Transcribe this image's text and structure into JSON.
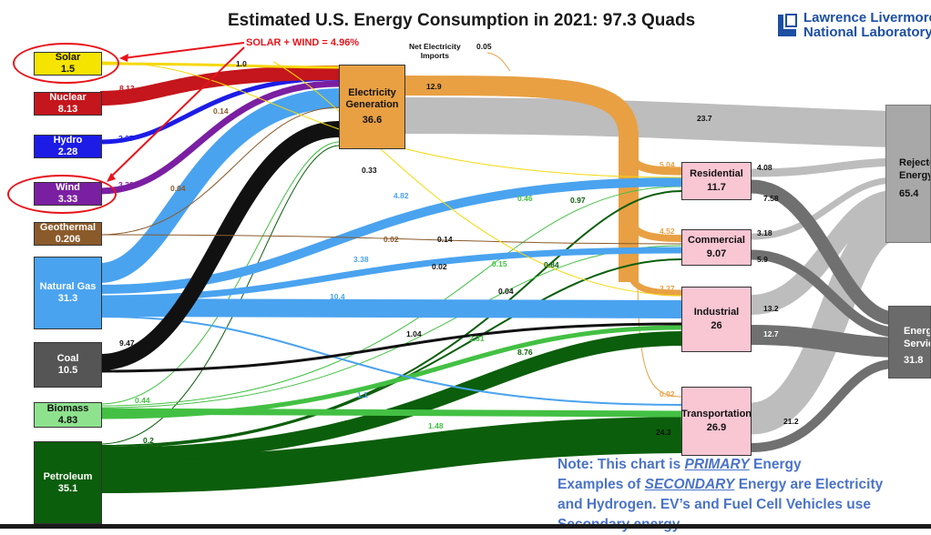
{
  "title": "Estimated U.S. Energy Consumption in 2021: 97.3 Quads",
  "lab_logo": {
    "line1": "Lawrence Livermore",
    "line2": "National Laboratory",
    "color": "#1d4fa3"
  },
  "annotation": "SOLAR + WIND = 4.96%",
  "net_imports": {
    "label_line1": "Net Electricity",
    "label_line2": "Imports",
    "value": "0.05"
  },
  "note": {
    "line1_pre": "Note: This chart is ",
    "line1_em": "PRIMARY",
    "line1_post": " Energy",
    "line2_pre": "Examples of ",
    "line2_em": "SECONDARY",
    "line2_post": " Energy are Electricity",
    "line3": "and Hydrogen. EV’s and Fuel Cell Vehicles use",
    "line4": "Secondary energy"
  },
  "colors": {
    "solar": "#f5d80a",
    "nuclear": "#c4161c",
    "hydro": "#1c1ce6",
    "wind": "#7b1fa2",
    "geothermal": "#8b5a2b",
    "natural_gas": "#4aa3ef",
    "coal": "#111111",
    "biomass": "#43c043",
    "petroleum": "#0b5e0b",
    "electricity": "#e8a043",
    "rejected": "#bdbdbd",
    "services": "#6f6f6f",
    "sector": "#f9c6d3",
    "highlight": "#e8141b"
  },
  "sources": [
    {
      "id": "solar",
      "name": "Solar",
      "value": "1.5"
    },
    {
      "id": "nuclear",
      "name": "Nuclear",
      "value": "8.13"
    },
    {
      "id": "hydro",
      "name": "Hydro",
      "value": "2.28"
    },
    {
      "id": "wind",
      "name": "Wind",
      "value": "3.33"
    },
    {
      "id": "geothermal",
      "name": "Geothermal",
      "value": "0.206"
    },
    {
      "id": "natural_gas",
      "name": "Natural Gas",
      "value": "31.3"
    },
    {
      "id": "coal",
      "name": "Coal",
      "value": "10.5"
    },
    {
      "id": "biomass",
      "name": "Biomass",
      "value": "4.83"
    },
    {
      "id": "petroleum",
      "name": "Petroleum",
      "value": "35.1"
    }
  ],
  "generation": {
    "name_line1": "Electricity",
    "name_line2": "Generation",
    "value": "36.6"
  },
  "sectors": [
    {
      "id": "residential",
      "name": "Residential",
      "value": "11.7"
    },
    {
      "id": "commercial",
      "name": "Commercial",
      "value": "9.07"
    },
    {
      "id": "industrial",
      "name": "Industrial",
      "value": "26"
    },
    {
      "id": "transportation",
      "name": "Transportation",
      "value": "26.9"
    }
  ],
  "outputs": {
    "rejected": {
      "name_line1": "Rejected",
      "name_line2": "Energy",
      "value": "65.4"
    },
    "services": {
      "name_line1": "Energy",
      "name_line2": "Services",
      "value": "31.8"
    }
  },
  "chart_data": {
    "type": "sankey",
    "title": "Estimated U.S. Energy Consumption in 2021: 97.3 Quads",
    "units": "Quads",
    "nodes": [
      "Solar",
      "Nuclear",
      "Hydro",
      "Wind",
      "Geothermal",
      "Natural Gas",
      "Coal",
      "Biomass",
      "Petroleum",
      "Net Electricity Imports",
      "Electricity Generation",
      "Residential",
      "Commercial",
      "Industrial",
      "Transportation",
      "Rejected Energy",
      "Energy Services"
    ],
    "links": [
      {
        "source": "Solar",
        "target": "Electricity Generation",
        "value": 1.0,
        "label": "1.0"
      },
      {
        "source": "Nuclear",
        "target": "Electricity Generation",
        "value": 8.13,
        "label": "8.13"
      },
      {
        "source": "Hydro",
        "target": "Electricity Generation",
        "value": 2.27,
        "label": "2.27"
      },
      {
        "source": "Wind",
        "target": "Electricity Generation",
        "value": 3.32,
        "label": "3.32"
      },
      {
        "source": "Geothermal",
        "target": "Electricity Generation",
        "value": 0.14,
        "label": "0.14"
      },
      {
        "source": "Geothermal",
        "target": "Residential",
        "value": 0.04,
        "label": "0.04"
      },
      {
        "source": "Geothermal",
        "target": "Commercial",
        "value": 0.02,
        "label": "0.02"
      },
      {
        "source": "Natural Gas",
        "target": "Electricity Generation",
        "value": 11.6,
        "label": "11.6"
      },
      {
        "source": "Natural Gas",
        "target": "Residential",
        "value": 4.82,
        "label": "4.82"
      },
      {
        "source": "Natural Gas",
        "target": "Commercial",
        "value": 3.38,
        "label": "3.38"
      },
      {
        "source": "Natural Gas",
        "target": "Industrial",
        "value": 10.4,
        "label": "10.4"
      },
      {
        "source": "Natural Gas",
        "target": "Transportation",
        "value": 1.1,
        "label": "1.1"
      },
      {
        "source": "Coal",
        "target": "Electricity Generation",
        "value": 9.47,
        "label": "9.47"
      },
      {
        "source": "Coal",
        "target": "Industrial",
        "value": 1.04,
        "label": "1.04"
      },
      {
        "source": "Biomass",
        "target": "Electricity Generation",
        "value": 0.44,
        "label": "0.44"
      },
      {
        "source": "Biomass",
        "target": "Residential",
        "value": 0.46,
        "label": "0.46"
      },
      {
        "source": "Biomass",
        "target": "Commercial",
        "value": 0.15,
        "label": "0.15"
      },
      {
        "source": "Biomass",
        "target": "Industrial",
        "value": 2.31,
        "label": "2.31"
      },
      {
        "source": "Biomass",
        "target": "Transportation",
        "value": 1.48,
        "label": "1.48"
      },
      {
        "source": "Petroleum",
        "target": "Electricity Generation",
        "value": 0.2,
        "label": "0.2"
      },
      {
        "source": "Petroleum",
        "target": "Residential",
        "value": 0.97,
        "label": "0.97"
      },
      {
        "source": "Petroleum",
        "target": "Commercial",
        "value": 0.84,
        "label": "0.84"
      },
      {
        "source": "Petroleum",
        "target": "Industrial",
        "value": 8.76,
        "label": "8.76"
      },
      {
        "source": "Petroleum",
        "target": "Transportation",
        "value": 24.3,
        "label": "24.3"
      },
      {
        "source": "Net Electricity Imports",
        "target": "Electricity Generation",
        "value": 0.05,
        "label": "0.05"
      },
      {
        "source": "Solar",
        "target": "Residential",
        "value": 0.33,
        "label": "0.33"
      },
      {
        "source": "Solar",
        "target": "Commercial",
        "value": 0.14,
        "label": "0.14"
      },
      {
        "source": "Solar",
        "target": "Industrial",
        "value": 0.04,
        "label": "0.04"
      },
      {
        "source": "Electricity Generation",
        "target": "Residential",
        "value": 5.04,
        "label": "5.04"
      },
      {
        "source": "Electricity Generation",
        "target": "Commercial",
        "value": 4.52,
        "label": "4.52"
      },
      {
        "source": "Electricity Generation",
        "target": "Industrial",
        "value": 3.37,
        "label": "3.37"
      },
      {
        "source": "Electricity Generation",
        "target": "Transportation",
        "value": 0.02,
        "label": "0.02"
      },
      {
        "source": "Electricity Generation",
        "target": "Rejected Energy",
        "value": 23.7,
        "label": "23.7"
      },
      {
        "source": "Residential",
        "target": "Rejected Energy",
        "value": 4.08,
        "label": "4.08"
      },
      {
        "source": "Residential",
        "target": "Energy Services",
        "value": 7.58,
        "label": "7.58"
      },
      {
        "source": "Commercial",
        "target": "Rejected Energy",
        "value": 3.18,
        "label": "3.18"
      },
      {
        "source": "Commercial",
        "target": "Energy Services",
        "value": 5.9,
        "label": "5.9"
      },
      {
        "source": "Industrial",
        "target": "Rejected Energy",
        "value": 13.2,
        "label": "13.2"
      },
      {
        "source": "Industrial",
        "target": "Energy Services",
        "value": 12.7,
        "label": "12.7"
      },
      {
        "source": "Transportation",
        "target": "Rejected Energy",
        "value": 21.2,
        "label": "21.2"
      },
      {
        "source": "Transportation",
        "target": "Energy Services",
        "value": 5.65,
        "label": "5.65"
      },
      {
        "source": "Natural Gas",
        "target": "Industrial",
        "value": 0.02,
        "label": "0.02"
      }
    ]
  }
}
